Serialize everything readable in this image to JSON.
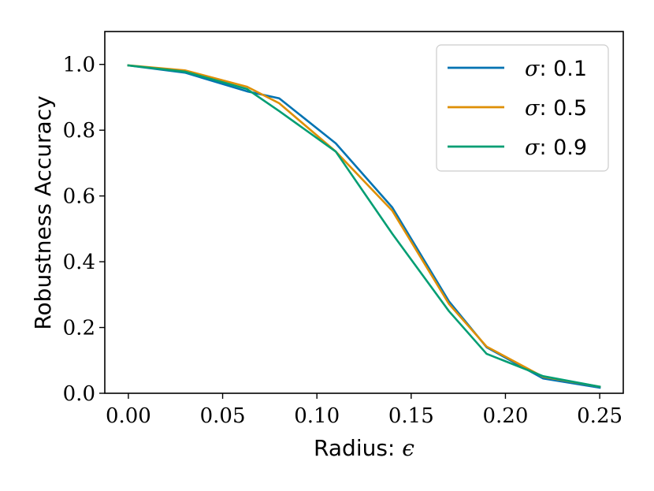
{
  "chart_data": {
    "type": "line",
    "title": "",
    "xlabel_text": "Radius: ",
    "xlabel_symbol": "ϵ",
    "ylabel": "Robustness Accuracy",
    "xlim": [
      -0.0125,
      0.2625
    ],
    "ylim": [
      0.0,
      1.1
    ],
    "xticks": [
      0.0,
      0.05,
      0.1,
      0.15,
      0.2,
      0.25
    ],
    "xtick_labels": [
      "0.00",
      "0.05",
      "0.10",
      "0.15",
      "0.20",
      "0.25"
    ],
    "yticks": [
      0.0,
      0.2,
      0.4,
      0.6,
      0.8,
      1.0
    ],
    "ytick_labels": [
      "0.0",
      "0.2",
      "0.4",
      "0.6",
      "0.8",
      "1.0"
    ],
    "grid": false,
    "legend_position": "top-right",
    "x": [
      0.0,
      0.03,
      0.063,
      0.08,
      0.11,
      0.14,
      0.17,
      0.19,
      0.22,
      0.25
    ],
    "series": [
      {
        "name_symbol": "σ",
        "name_value": ": 0.1",
        "color": "#0173b2",
        "values": [
          0.997,
          0.975,
          0.918,
          0.897,
          0.76,
          0.565,
          0.28,
          0.14,
          0.045,
          0.017
        ]
      },
      {
        "name_symbol": "σ",
        "name_value": ": 0.5",
        "color": "#de8f05",
        "values": [
          0.997,
          0.982,
          0.932,
          0.882,
          0.735,
          0.555,
          0.272,
          0.142,
          0.05,
          0.02
        ]
      },
      {
        "name_symbol": "σ",
        "name_value": ": 0.9",
        "color": "#029e73",
        "values": [
          0.997,
          0.978,
          0.925,
          0.858,
          0.735,
          0.485,
          0.25,
          0.12,
          0.052,
          0.02
        ]
      }
    ]
  }
}
